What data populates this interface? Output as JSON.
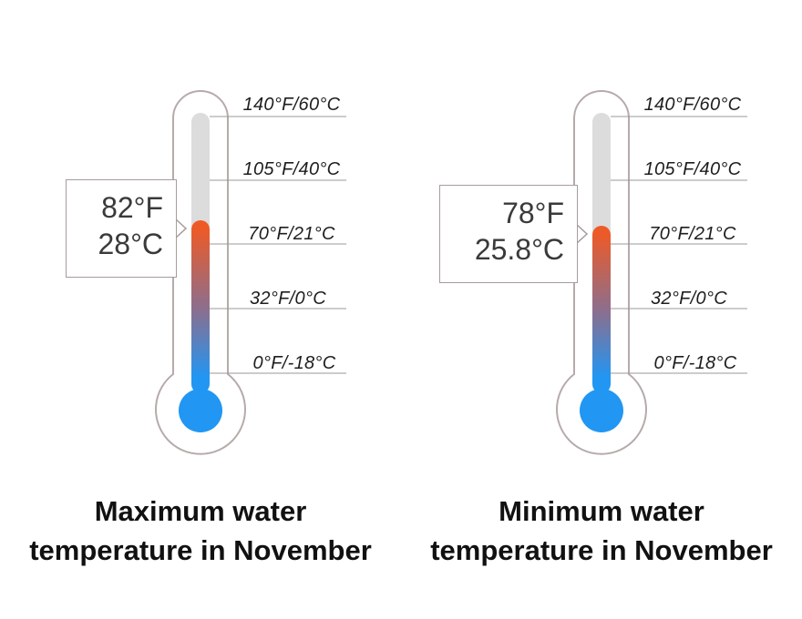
{
  "thermometers": [
    {
      "fahrenheit": "82°F",
      "celsius": "28°C",
      "value_c": 28,
      "caption": "Maximum water temperature in November",
      "scale": [
        "140°F/60°C",
        "105°F/40°C",
        "70°F/21°C",
        "32°F/0°C",
        "0°F/-18°C"
      ]
    },
    {
      "fahrenheit": "78°F",
      "celsius": "25.8°C",
      "value_c": 25.8,
      "caption": "Minimum water temperature in November",
      "scale": [
        "140°F/60°C",
        "105°F/40°C",
        "70°F/21°C",
        "32°F/0°C",
        "0°F/-18°C"
      ]
    }
  ],
  "colors": {
    "outline": "#b7aaaa",
    "tube": "#dcdcdc",
    "hot": "#ee5a26",
    "cold": "#2196f3",
    "tick_line": "#9a9a9a"
  }
}
